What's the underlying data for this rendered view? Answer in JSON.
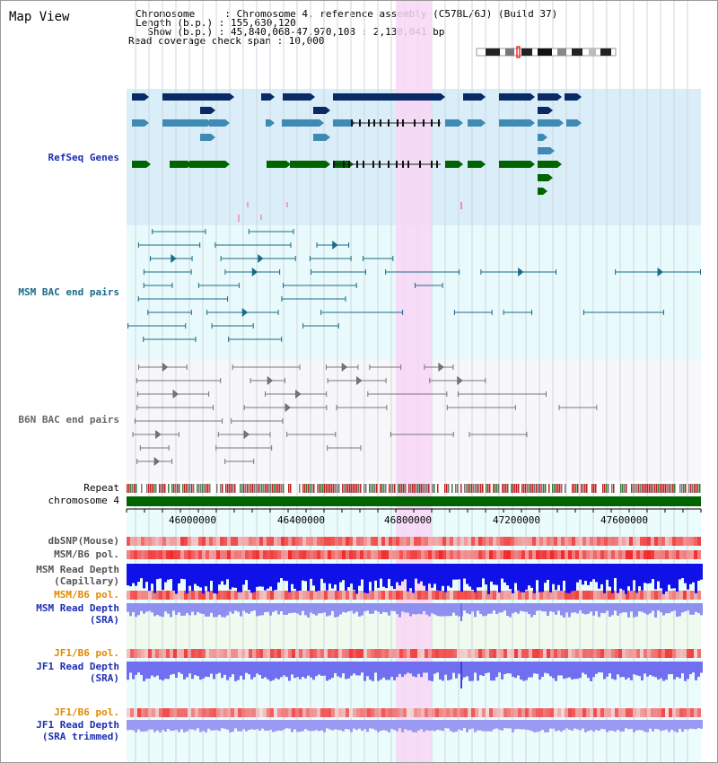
{
  "view_title": "Map View",
  "info": {
    "chromosome_line": "Chromosome     : Chromosome 4, reference assembly (C57BL/6J) (Build 37)",
    "length_line": "Length (b.p.) : 155,630,120",
    "show_line": "  Show (b.p.) : 45,840,068-47,970,108 : 2,130,041 bp",
    "coverage_line": "Read coverage check span : 10,000"
  },
  "tracks": {
    "refseq": "RefSeq Genes",
    "msm_bac": "MSM BAC end pairs",
    "b6n_bac": "B6N BAC end pairs",
    "repeat": "Repeat",
    "chromosome": "chromosome 4",
    "dbsnp": "dbSNP(Mouse)",
    "msm_b6_pol_1": "MSM/B6 pol.",
    "msm_depth_cap_1": "MSM Read Depth",
    "msm_depth_cap_2": "(Capillary)",
    "msm_b6_pol_2": "MSM/B6 pol.",
    "msm_depth_sra_1": "MSM Read Depth",
    "msm_depth_sra_2": "(SRA)",
    "jf1_b6_pol_1": "JF1/B6 pol.",
    "jf1_depth_sra_1": "JF1 Read Depth",
    "jf1_depth_sra_2": "(SRA)",
    "jf1_b6_pol_2": "JF1/B6 pol.",
    "jf1_depth_trim_1": "JF1 Read Depth",
    "jf1_depth_trim_2": "(SRA trimmed)"
  },
  "axis_ticks": [
    "46000000",
    "46400000",
    "46800000",
    "47200000",
    "47600000"
  ],
  "colors": {
    "refseq_bg": "#d9eef8",
    "msm_bg": "#e8fafc",
    "highlight": "#f8d6f4",
    "chromosome_bar": "#006400",
    "gene_dark": "#0a2a66",
    "gene_mid": "#3f8ab4",
    "gene_green": "#006400"
  }
}
